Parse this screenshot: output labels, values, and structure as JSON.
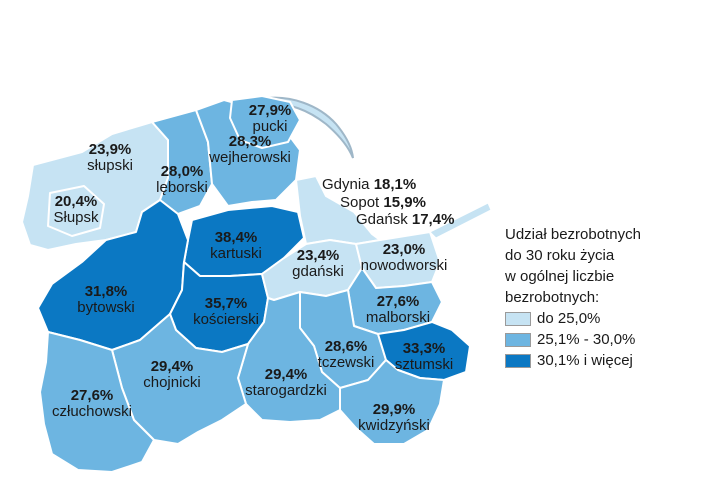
{
  "colors": {
    "low": "#c6e3f3",
    "mid": "#6db5e1",
    "high": "#0b78c3",
    "coast": "#9fb7c8"
  },
  "regions": [
    {
      "id": "slupski",
      "name": "słupski",
      "value": "23,9%",
      "class": "low"
    },
    {
      "id": "slupsk",
      "name": "Słupsk",
      "value": "20,4%",
      "class": "low"
    },
    {
      "id": "leborski",
      "name": "lęborski",
      "value": "28,0%",
      "class": "mid"
    },
    {
      "id": "wejherowski",
      "name": "wejherowski",
      "value": "28,3%",
      "class": "mid"
    },
    {
      "id": "pucki",
      "name": "pucki",
      "value": "27,9%",
      "class": "mid"
    },
    {
      "id": "kartuski",
      "name": "kartuski",
      "value": "38,4%",
      "class": "high"
    },
    {
      "id": "bytowski",
      "name": "bytowski",
      "value": "31,8%",
      "class": "high"
    },
    {
      "id": "koscierski",
      "name": "kościerski",
      "value": "35,7%",
      "class": "high"
    },
    {
      "id": "gdanski",
      "name": "gdański",
      "value": "23,4%",
      "class": "low"
    },
    {
      "id": "nowodworski",
      "name": "nowodworski",
      "value": "23,0%",
      "class": "low"
    },
    {
      "id": "malborski",
      "name": "malborski",
      "value": "27,6%",
      "class": "mid"
    },
    {
      "id": "tczewski",
      "name": "tczewski",
      "value": "28,6%",
      "class": "mid"
    },
    {
      "id": "sztumski",
      "name": "sztumski",
      "value": "33,3%",
      "class": "high"
    },
    {
      "id": "kwidzynski",
      "name": "kwidzyński",
      "value": "29,9%",
      "class": "mid"
    },
    {
      "id": "starogardzki",
      "name": "starogardzki",
      "value": "29,4%",
      "class": "mid"
    },
    {
      "id": "chojnicki",
      "name": "chojnicki",
      "value": "29,4%",
      "class": "mid"
    },
    {
      "id": "czluchowski",
      "name": "człuchowski",
      "value": "27,6%",
      "class": "mid"
    }
  ],
  "cities": [
    {
      "name": "Gdynia",
      "value": "18,1%"
    },
    {
      "name": "Sopot",
      "value": "15,9%"
    },
    {
      "name": "Gdańsk",
      "value": "17,4%"
    }
  ],
  "legend": {
    "title_lines": [
      "Udział bezrobotnych",
      "do 30 roku życia",
      "w ogólnej liczbie",
      "bezrobotnych:"
    ],
    "items": [
      {
        "label": "do 25,0%",
        "class": "low"
      },
      {
        "label": "25,1% - 30,0%",
        "class": "mid"
      },
      {
        "label": "30,1% i więcej",
        "class": "high"
      }
    ]
  }
}
